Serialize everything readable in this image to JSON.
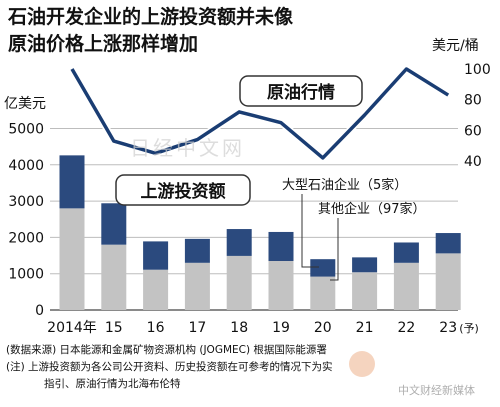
{
  "title_lines": [
    "石油开发企业的上游投资额并未像",
    "原油价格上涨那样增加"
  ],
  "chart_data": {
    "type": "bar",
    "categories": [
      "2014年",
      "15",
      "16",
      "17",
      "18",
      "19",
      "20",
      "21",
      "22",
      "23"
    ],
    "category_suffix": "(予)",
    "series": [
      {
        "name": "其他企业（97家）",
        "values": [
          2800,
          1800,
          1110,
          1300,
          1490,
          1350,
          920,
          1040,
          1300,
          1560
        ]
      },
      {
        "name": "大型石油企业（5家）",
        "values": [
          1460,
          1140,
          780,
          660,
          740,
          800,
          480,
          410,
          560,
          560
        ]
      }
    ],
    "line": {
      "name": "原油行情",
      "values": [
        100,
        53,
        45,
        54,
        72,
        65,
        42,
        70,
        100,
        83
      ]
    },
    "left_axis": {
      "unit": "亿美元",
      "ticks": [
        0,
        1000,
        2000,
        3000,
        4000,
        5000
      ],
      "range": [
        0,
        5500
      ]
    },
    "right_axis": {
      "unit": "美元/桶",
      "ticks": [
        40,
        60,
        80,
        100
      ],
      "range": [
        37.5,
        100
      ]
    },
    "legend": {
      "bar_total": "上游投资额",
      "line": "原油行情"
    },
    "colors": {
      "major": "#2b4a7e",
      "other": "#c3c3c3",
      "line": "#1a3d73",
      "label_border": "#333333"
    }
  },
  "notes": [
    "(数据来源) 日本能源和金属矿物资源机构 (JOGMEC) 根据国际能源署",
    "(注) 上游投资额为各公司公开资料、历史投资额在可参考的情况下为实",
    "指引、原油行情为北海布伦特"
  ],
  "watermarks": [
    "日经中文网",
    "中文财经新媒体"
  ]
}
